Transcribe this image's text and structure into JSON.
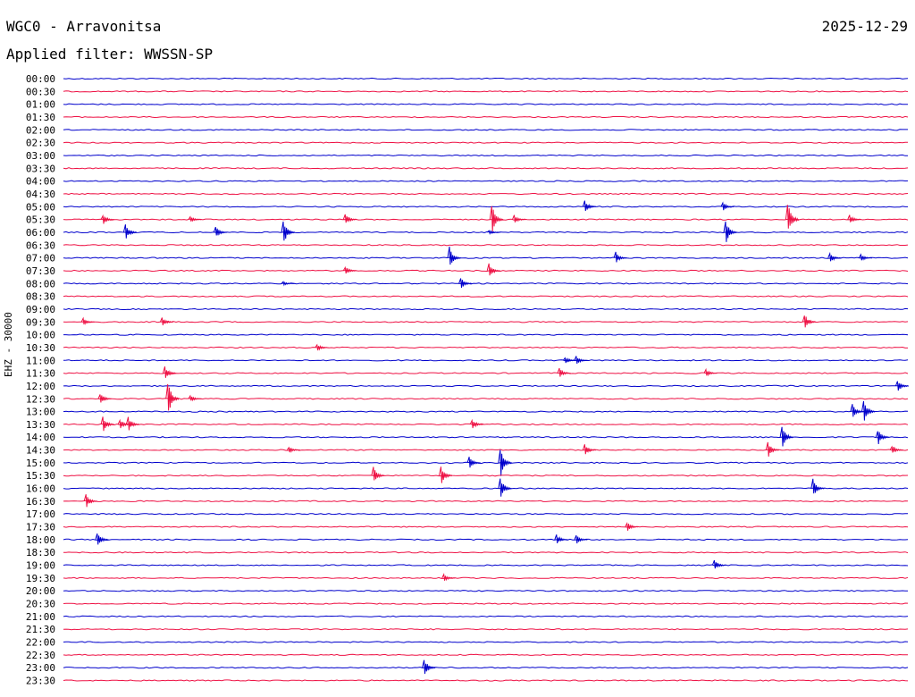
{
  "header": {
    "title": "WGC0 - Arravonitsa",
    "date": "2025-12-29",
    "filter": "Applied filter: WWSSN-SP"
  },
  "axis": {
    "label": "EHZ - 30000"
  },
  "colors": {
    "even_trace": "#0000cc",
    "odd_trace": "#ee1144",
    "background": "#ffffff",
    "text": "#000000"
  },
  "chart_data": {
    "type": "helicorder",
    "title": "WGC0 - Arravonitsa",
    "ylabel": "EHZ - 30000",
    "row_labels": [
      "00:00",
      "00:30",
      "01:00",
      "01:30",
      "02:00",
      "02:30",
      "03:00",
      "03:30",
      "04:00",
      "04:30",
      "05:00",
      "05:30",
      "06:00",
      "06:30",
      "07:00",
      "07:30",
      "08:00",
      "08:30",
      "09:00",
      "09:30",
      "10:00",
      "10:30",
      "11:00",
      "11:30",
      "12:00",
      "12:30",
      "13:00",
      "13:30",
      "14:00",
      "14:30",
      "15:00",
      "15:30",
      "16:00",
      "16:30",
      "17:00",
      "17:30",
      "18:00",
      "18:30",
      "19:00",
      "19:30",
      "20:00",
      "20:30",
      "21:00",
      "21:30",
      "22:00",
      "22:30",
      "23:00",
      "23:30"
    ],
    "row_minutes": 30,
    "colors_alternate": [
      "blue",
      "red"
    ],
    "events": [
      {
        "row": "05:00",
        "minute": 18.5,
        "amp": 0.6
      },
      {
        "row": "05:00",
        "minute": 23.4,
        "amp": 0.35
      },
      {
        "row": "05:30",
        "minute": 1.4,
        "amp": 0.45
      },
      {
        "row": "05:30",
        "minute": 4.5,
        "amp": 0.3
      },
      {
        "row": "05:30",
        "minute": 10.0,
        "amp": 0.5
      },
      {
        "row": "05:30",
        "minute": 15.2,
        "amp": 1.3
      },
      {
        "row": "05:30",
        "minute": 16.0,
        "amp": 0.4
      },
      {
        "row": "05:30",
        "minute": 25.7,
        "amp": 1.5
      },
      {
        "row": "05:30",
        "minute": 27.9,
        "amp": 0.4
      },
      {
        "row": "06:00",
        "minute": 2.2,
        "amp": 0.7
      },
      {
        "row": "06:00",
        "minute": 5.4,
        "amp": 0.5
      },
      {
        "row": "06:00",
        "minute": 7.8,
        "amp": 1.1
      },
      {
        "row": "06:00",
        "minute": 15.1,
        "amp": 0.2
      },
      {
        "row": "06:00",
        "minute": 23.5,
        "amp": 1.1
      },
      {
        "row": "07:00",
        "minute": 13.7,
        "amp": 0.9
      },
      {
        "row": "07:00",
        "minute": 19.6,
        "amp": 0.5
      },
      {
        "row": "07:00",
        "minute": 27.2,
        "amp": 0.4
      },
      {
        "row": "07:00",
        "minute": 28.3,
        "amp": 0.3
      },
      {
        "row": "07:30",
        "minute": 10.0,
        "amp": 0.4
      },
      {
        "row": "07:30",
        "minute": 15.1,
        "amp": 0.6
      },
      {
        "row": "08:00",
        "minute": 14.1,
        "amp": 0.5
      },
      {
        "row": "08:00",
        "minute": 7.8,
        "amp": 0.2
      },
      {
        "row": "09:30",
        "minute": 0.7,
        "amp": 0.3
      },
      {
        "row": "09:30",
        "minute": 3.5,
        "amp": 0.4
      },
      {
        "row": "09:30",
        "minute": 26.3,
        "amp": 0.7
      },
      {
        "row": "10:30",
        "minute": 9.0,
        "amp": 0.3
      },
      {
        "row": "11:00",
        "minute": 17.8,
        "amp": 0.3
      },
      {
        "row": "11:00",
        "minute": 18.2,
        "amp": 0.35
      },
      {
        "row": "11:30",
        "minute": 3.6,
        "amp": 0.6
      },
      {
        "row": "11:30",
        "minute": 17.6,
        "amp": 0.4
      },
      {
        "row": "11:30",
        "minute": 22.8,
        "amp": 0.3
      },
      {
        "row": "12:00",
        "minute": 29.6,
        "amp": 0.5
      },
      {
        "row": "12:30",
        "minute": 1.3,
        "amp": 0.5
      },
      {
        "row": "12:30",
        "minute": 3.7,
        "amp": 1.6
      },
      {
        "row": "12:30",
        "minute": 4.5,
        "amp": 0.3
      },
      {
        "row": "13:00",
        "minute": 28.0,
        "amp": 0.6
      },
      {
        "row": "13:00",
        "minute": 28.4,
        "amp": 1.0
      },
      {
        "row": "13:30",
        "minute": 1.4,
        "amp": 0.7
      },
      {
        "row": "13:30",
        "minute": 2.0,
        "amp": 0.5
      },
      {
        "row": "13:30",
        "minute": 2.3,
        "amp": 0.6
      },
      {
        "row": "13:30",
        "minute": 14.5,
        "amp": 0.5
      },
      {
        "row": "14:00",
        "minute": 25.5,
        "amp": 1.0
      },
      {
        "row": "14:00",
        "minute": 28.9,
        "amp": 0.7
      },
      {
        "row": "14:30",
        "minute": 8.0,
        "amp": 0.3
      },
      {
        "row": "14:30",
        "minute": 18.5,
        "amp": 0.5
      },
      {
        "row": "14:30",
        "minute": 25.0,
        "amp": 0.7
      },
      {
        "row": "14:30",
        "minute": 29.4,
        "amp": 0.4
      },
      {
        "row": "15:00",
        "minute": 14.4,
        "amp": 0.5
      },
      {
        "row": "15:00",
        "minute": 15.5,
        "amp": 1.4
      },
      {
        "row": "15:30",
        "minute": 11.0,
        "amp": 0.7
      },
      {
        "row": "15:30",
        "minute": 13.4,
        "amp": 0.8
      },
      {
        "row": "16:00",
        "minute": 15.5,
        "amp": 1.0
      },
      {
        "row": "16:00",
        "minute": 26.6,
        "amp": 0.8
      },
      {
        "row": "16:30",
        "minute": 0.8,
        "amp": 0.6
      },
      {
        "row": "17:30",
        "minute": 20.0,
        "amp": 0.4
      },
      {
        "row": "18:00",
        "minute": 1.2,
        "amp": 0.7
      },
      {
        "row": "18:00",
        "minute": 17.5,
        "amp": 0.4
      },
      {
        "row": "18:00",
        "minute": 18.2,
        "amp": 0.4
      },
      {
        "row": "19:00",
        "minute": 23.1,
        "amp": 0.5
      },
      {
        "row": "19:30",
        "minute": 13.5,
        "amp": 0.3
      },
      {
        "row": "23:00",
        "minute": 12.8,
        "amp": 0.8
      }
    ]
  }
}
